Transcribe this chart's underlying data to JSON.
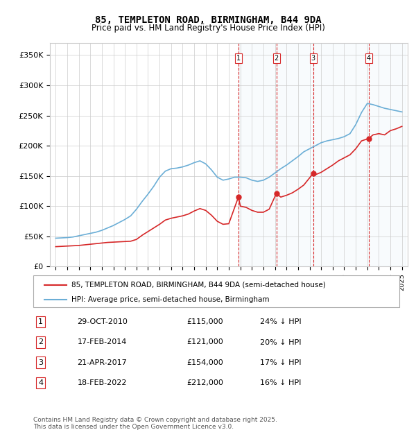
{
  "title": "85, TEMPLETON ROAD, BIRMINGHAM, B44 9DA",
  "subtitle": "Price paid vs. HM Land Registry's House Price Index (HPI)",
  "ylabel_ticks": [
    "£0",
    "£50K",
    "£100K",
    "£150K",
    "£200K",
    "£250K",
    "£300K",
    "£350K"
  ],
  "ytick_values": [
    0,
    50000,
    100000,
    150000,
    200000,
    250000,
    300000,
    350000
  ],
  "ylim": [
    0,
    370000
  ],
  "legend_line1": "85, TEMPLETON ROAD, BIRMINGHAM, B44 9DA (semi-detached house)",
  "legend_line2": "HPI: Average price, semi-detached house, Birmingham",
  "transactions": [
    {
      "num": 1,
      "date": "29-OCT-2010",
      "price": 115000,
      "pct": "24%",
      "year": 2010.83
    },
    {
      "num": 2,
      "date": "17-FEB-2014",
      "price": 121000,
      "pct": "20%",
      "year": 2014.12
    },
    {
      "num": 3,
      "date": "21-APR-2017",
      "price": 154000,
      "pct": "17%",
      "year": 2017.3
    },
    {
      "num": 4,
      "date": "18-FEB-2022",
      "price": 212000,
      "pct": "16%",
      "year": 2022.12
    }
  ],
  "footnote1": "Contains HM Land Registry data © Crown copyright and database right 2025.",
  "footnote2": "This data is licensed under the Open Government Licence v3.0.",
  "hpi_color": "#6baed6",
  "price_color": "#d62728",
  "vline_color": "#d62728",
  "vline_style": "--",
  "shaded_color": "#dbeaf7",
  "background_color": "#ffffff",
  "grid_color": "#cccccc",
  "hpi_data": {
    "years": [
      1995,
      1995.5,
      1996,
      1996.5,
      1997,
      1997.5,
      1998,
      1998.5,
      1999,
      1999.5,
      2000,
      2000.5,
      2001,
      2001.5,
      2002,
      2002.5,
      2003,
      2003.5,
      2004,
      2004.5,
      2005,
      2005.5,
      2006,
      2006.5,
      2007,
      2007.5,
      2008,
      2008.5,
      2009,
      2009.5,
      2010,
      2010.5,
      2011,
      2011.5,
      2012,
      2012.5,
      2013,
      2013.5,
      2014,
      2014.5,
      2015,
      2015.5,
      2016,
      2016.5,
      2017,
      2017.5,
      2018,
      2018.5,
      2019,
      2019.5,
      2020,
      2020.5,
      2021,
      2021.5,
      2022,
      2022.5,
      2023,
      2023.5,
      2024,
      2024.5,
      2025
    ],
    "values": [
      47000,
      47500,
      48000,
      49000,
      51000,
      53000,
      55000,
      57000,
      60000,
      64000,
      68000,
      73000,
      78000,
      84000,
      95000,
      108000,
      120000,
      133000,
      148000,
      158000,
      162000,
      163000,
      165000,
      168000,
      172000,
      175000,
      170000,
      160000,
      148000,
      143000,
      145000,
      148000,
      148000,
      147000,
      143000,
      141000,
      143000,
      148000,
      155000,
      162000,
      168000,
      175000,
      182000,
      190000,
      195000,
      200000,
      205000,
      208000,
      210000,
      212000,
      215000,
      220000,
      235000,
      255000,
      270000,
      268000,
      265000,
      262000,
      260000,
      258000,
      256000
    ]
  },
  "price_data": {
    "years": [
      1995,
      1995.5,
      1996,
      1996.5,
      1997,
      1997.5,
      1998,
      1998.5,
      1999,
      1999.5,
      2000,
      2000.5,
      2001,
      2001.5,
      2002,
      2002.5,
      2003,
      2003.5,
      2004,
      2004.5,
      2005,
      2005.5,
      2006,
      2006.5,
      2007,
      2007.5,
      2008,
      2008.5,
      2009,
      2009.5,
      2010,
      2010.83,
      2011,
      2011.5,
      2012,
      2012.5,
      2013,
      2013.5,
      2014.12,
      2014.5,
      2015,
      2015.5,
      2016,
      2016.5,
      2017.3,
      2017.5,
      2018,
      2018.5,
      2019,
      2019.5,
      2020,
      2020.5,
      2021,
      2021.5,
      2022.12,
      2022.5,
      2023,
      2023.5,
      2024,
      2024.5,
      2025
    ],
    "values": [
      33000,
      33500,
      34000,
      34500,
      35000,
      36000,
      37000,
      38000,
      39000,
      40000,
      40500,
      41000,
      41500,
      42000,
      45000,
      52000,
      58000,
      64000,
      70000,
      77000,
      80000,
      82000,
      84000,
      87000,
      92000,
      96000,
      93000,
      85000,
      75000,
      70000,
      71000,
      115000,
      100000,
      98000,
      93000,
      90000,
      90000,
      95000,
      121000,
      115000,
      118000,
      122000,
      128000,
      135000,
      154000,
      152000,
      156000,
      162000,
      168000,
      175000,
      180000,
      185000,
      195000,
      208000,
      212000,
      218000,
      220000,
      218000,
      225000,
      228000,
      232000
    ]
  }
}
